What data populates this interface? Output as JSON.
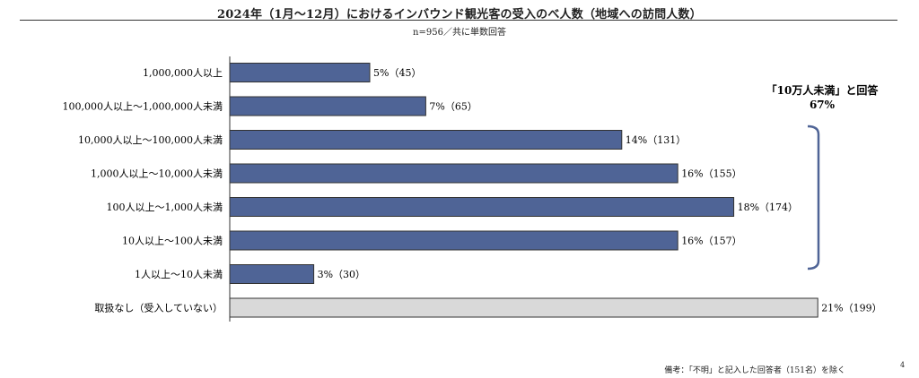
{
  "header": {
    "title": "2024年（1月～12月）におけるインバウンド観光客の受入のべ人数（地域への訪問人数）",
    "subtitle": "n=956／共に単数回答"
  },
  "footer": {
    "note": "備考：「不明」と記入した回答者（151名）を除く",
    "page_number": "4"
  },
  "annotation": {
    "line1": "「10万人未満」と回答",
    "line2": "67%"
  },
  "chart_data": {
    "type": "bar",
    "orientation": "horizontal",
    "categories": [
      "1,000,000人以上",
      "100,000人以上～1,000,000人未満",
      "10,000人以上～100,000人未満",
      "1,000人以上～10,000人未満",
      "100人以上～1,000人未満",
      "10人以上～100人未満",
      "1人以上～10人未満",
      "取扱なし（受入していない）"
    ],
    "values": [
      5,
      7,
      14,
      16,
      18,
      16,
      3,
      21
    ],
    "data_labels": [
      "5%（45）",
      "7%（65）",
      "14%（131）",
      "16%（155）",
      "18%（174）",
      "16%（157）",
      "3%（30）",
      "21%（199）"
    ],
    "bar_colors": [
      "#4f6496",
      "#4f6496",
      "#4f6496",
      "#4f6496",
      "#4f6496",
      "#4f6496",
      "#4f6496",
      "#d9d9d9"
    ],
    "xlim": [
      0,
      21
    ],
    "grid": false,
    "legend": "none"
  }
}
